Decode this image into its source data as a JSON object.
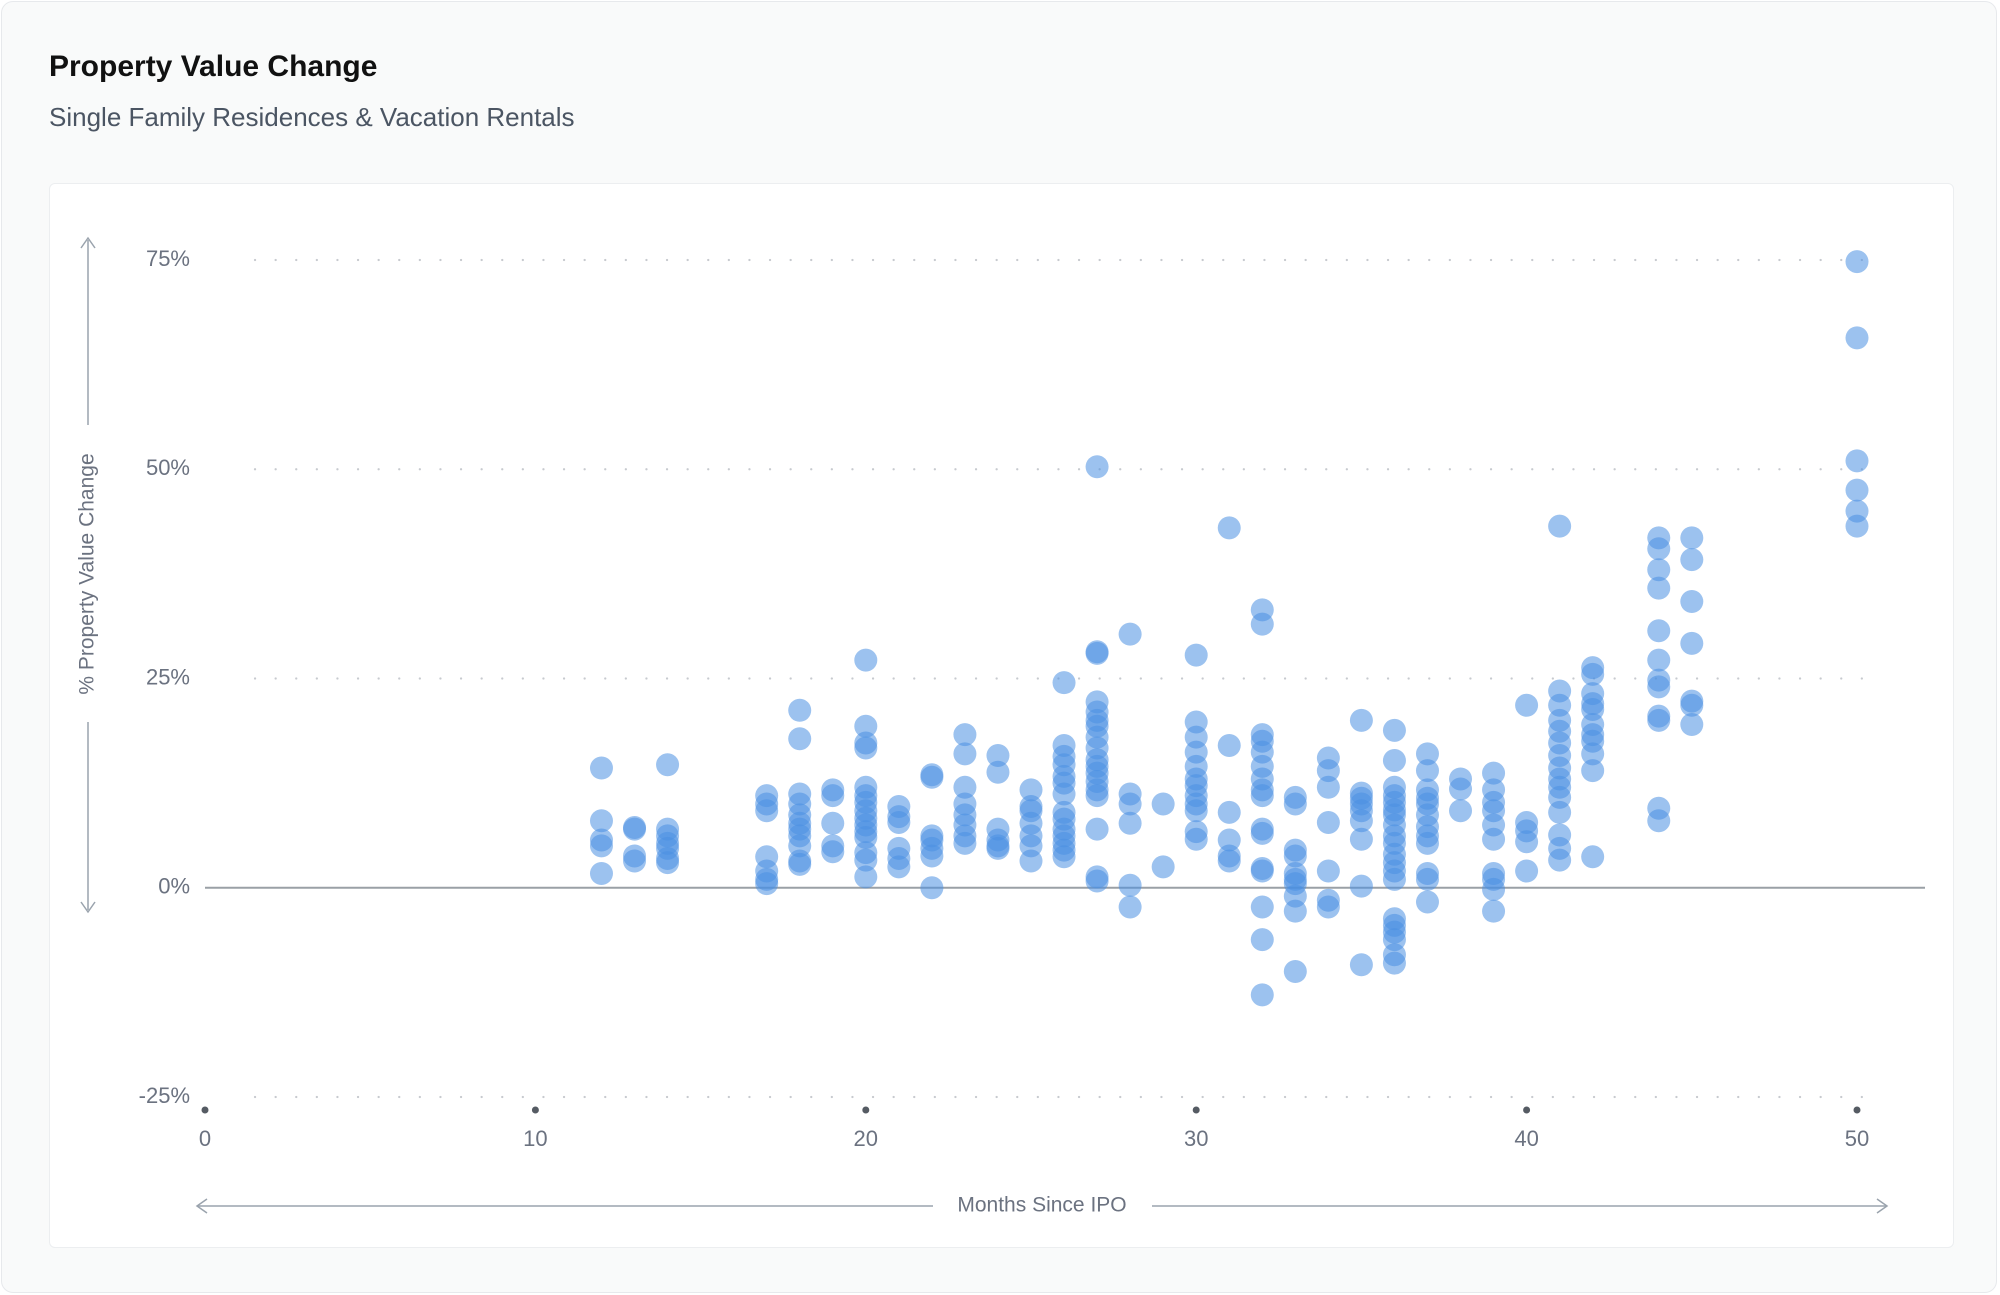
{
  "header": {
    "title": "Property Value Change",
    "subtitle": "Single Family Residences & Vacation Rentals"
  },
  "colors": {
    "point": "#4a90e2",
    "zero_line": "#9aa0a6",
    "grid_dots": "#c7cacf",
    "axis_arrow": "#9aa3ad"
  },
  "chart_data": {
    "type": "scatter",
    "xlabel": "Months Since IPO",
    "ylabel": "% Property Value Change",
    "xlim": [
      0,
      50
    ],
    "ylim": [
      -25,
      75
    ],
    "x_ticks": [
      0,
      10,
      20,
      30,
      40,
      50
    ],
    "y_ticks": [
      -25,
      0,
      25,
      50,
      75
    ],
    "x_tick_labels": [
      "0",
      "10",
      "20",
      "30",
      "40",
      "50"
    ],
    "y_tick_labels": [
      "-25%",
      "0%",
      "25%",
      "50%",
      "75%"
    ],
    "grid": "horizontal-dotted",
    "zero_line": true,
    "series": [
      {
        "points": [
          [
            12,
            14.3
          ],
          [
            12,
            8.0
          ],
          [
            12,
            5.7
          ],
          [
            12,
            5.0
          ],
          [
            12,
            1.7
          ],
          [
            13,
            7.2
          ],
          [
            13,
            7.0
          ],
          [
            13,
            3.8
          ],
          [
            13,
            3.2
          ],
          [
            14,
            14.7
          ],
          [
            14,
            7.0
          ],
          [
            14,
            6.2
          ],
          [
            14,
            5.3
          ],
          [
            14,
            4.7
          ],
          [
            14,
            3.5
          ],
          [
            14,
            3.0
          ],
          [
            17,
            11.0
          ],
          [
            17,
            10.0
          ],
          [
            17,
            9.2
          ],
          [
            17,
            3.7
          ],
          [
            17,
            2.0
          ],
          [
            17,
            1.0
          ],
          [
            17,
            0.5
          ],
          [
            18,
            21.2
          ],
          [
            18,
            17.8
          ],
          [
            18,
            11.2
          ],
          [
            18,
            10.0
          ],
          [
            18,
            8.7
          ],
          [
            18,
            7.7
          ],
          [
            18,
            7.0
          ],
          [
            18,
            6.2
          ],
          [
            18,
            5.0
          ],
          [
            18,
            3.2
          ],
          [
            18,
            2.8
          ],
          [
            19,
            11.7
          ],
          [
            19,
            11.0
          ],
          [
            19,
            7.7
          ],
          [
            19,
            5.0
          ],
          [
            19,
            4.3
          ],
          [
            20,
            27.2
          ],
          [
            20,
            19.3
          ],
          [
            20,
            17.3
          ],
          [
            20,
            16.7
          ],
          [
            20,
            12.0
          ],
          [
            20,
            11.0
          ],
          [
            20,
            10.2
          ],
          [
            20,
            9.2
          ],
          [
            20,
            8.3
          ],
          [
            20,
            7.5
          ],
          [
            20,
            6.7
          ],
          [
            20,
            6.0
          ],
          [
            20,
            4.2
          ],
          [
            20,
            3.3
          ],
          [
            20,
            1.3
          ],
          [
            21,
            9.7
          ],
          [
            21,
            8.5
          ],
          [
            21,
            7.8
          ],
          [
            21,
            4.7
          ],
          [
            21,
            3.5
          ],
          [
            21,
            2.5
          ],
          [
            22,
            13.5
          ],
          [
            22,
            13.2
          ],
          [
            22,
            6.2
          ],
          [
            22,
            5.7
          ],
          [
            22,
            4.7
          ],
          [
            22,
            3.8
          ],
          [
            22,
            0.0
          ],
          [
            23,
            18.3
          ],
          [
            23,
            16.0
          ],
          [
            23,
            12.0
          ],
          [
            23,
            10.0
          ],
          [
            23,
            8.7
          ],
          [
            23,
            7.5
          ],
          [
            23,
            6.2
          ],
          [
            23,
            5.3
          ],
          [
            24,
            15.8
          ],
          [
            24,
            13.8
          ],
          [
            24,
            7.0
          ],
          [
            24,
            5.7
          ],
          [
            24,
            5.0
          ],
          [
            24,
            4.7
          ],
          [
            25,
            11.7
          ],
          [
            25,
            9.7
          ],
          [
            25,
            9.2
          ],
          [
            25,
            7.7
          ],
          [
            25,
            6.2
          ],
          [
            25,
            5.0
          ],
          [
            25,
            3.2
          ],
          [
            26,
            24.5
          ],
          [
            26,
            17.0
          ],
          [
            26,
            15.7
          ],
          [
            26,
            14.7
          ],
          [
            26,
            13.3
          ],
          [
            26,
            12.5
          ],
          [
            26,
            11.2
          ],
          [
            26,
            9.0
          ],
          [
            26,
            8.2
          ],
          [
            26,
            7.0
          ],
          [
            26,
            6.2
          ],
          [
            26,
            5.3
          ],
          [
            26,
            4.5
          ],
          [
            26,
            3.7
          ],
          [
            27,
            50.3
          ],
          [
            27,
            28.2
          ],
          [
            27,
            28.0
          ],
          [
            27,
            22.2
          ],
          [
            27,
            21.0
          ],
          [
            27,
            20.0
          ],
          [
            27,
            19.3
          ],
          [
            27,
            18.0
          ],
          [
            27,
            16.7
          ],
          [
            27,
            15.3
          ],
          [
            27,
            14.5
          ],
          [
            27,
            13.7
          ],
          [
            27,
            12.7
          ],
          [
            27,
            11.7
          ],
          [
            27,
            11.0
          ],
          [
            27,
            7.0
          ],
          [
            27,
            1.3
          ],
          [
            27,
            0.8
          ],
          [
            28,
            30.3
          ],
          [
            28,
            11.2
          ],
          [
            28,
            10.0
          ],
          [
            28,
            7.7
          ],
          [
            28,
            0.3
          ],
          [
            28,
            -2.3
          ],
          [
            29,
            10.0
          ],
          [
            29,
            2.5
          ],
          [
            30,
            27.8
          ],
          [
            30,
            19.8
          ],
          [
            30,
            18.0
          ],
          [
            30,
            16.2
          ],
          [
            30,
            14.5
          ],
          [
            30,
            13.0
          ],
          [
            30,
            12.2
          ],
          [
            30,
            11.0
          ],
          [
            30,
            10.0
          ],
          [
            30,
            9.2
          ],
          [
            30,
            6.7
          ],
          [
            30,
            5.8
          ],
          [
            31,
            43.0
          ],
          [
            31,
            17.0
          ],
          [
            31,
            9.0
          ],
          [
            31,
            5.7
          ],
          [
            31,
            3.8
          ],
          [
            31,
            3.2
          ],
          [
            32,
            33.2
          ],
          [
            32,
            31.5
          ],
          [
            32,
            18.3
          ],
          [
            32,
            17.5
          ],
          [
            32,
            16.2
          ],
          [
            32,
            14.5
          ],
          [
            32,
            13.0
          ],
          [
            32,
            11.7
          ],
          [
            32,
            11.0
          ],
          [
            32,
            7.0
          ],
          [
            32,
            6.5
          ],
          [
            32,
            2.3
          ],
          [
            32,
            2.0
          ],
          [
            32,
            -2.3
          ],
          [
            32,
            -6.2
          ],
          [
            32,
            -12.8
          ],
          [
            33,
            10.8
          ],
          [
            33,
            10.0
          ],
          [
            33,
            4.5
          ],
          [
            33,
            3.8
          ],
          [
            33,
            1.7
          ],
          [
            33,
            1.0
          ],
          [
            33,
            0.5
          ],
          [
            33,
            -1.0
          ],
          [
            33,
            -2.8
          ],
          [
            33,
            -10.0
          ],
          [
            34,
            15.5
          ],
          [
            34,
            14.0
          ],
          [
            34,
            12.0
          ],
          [
            34,
            7.8
          ],
          [
            34,
            2.0
          ],
          [
            34,
            -1.5
          ],
          [
            34,
            -2.3
          ],
          [
            35,
            20.0
          ],
          [
            35,
            11.3
          ],
          [
            35,
            10.7
          ],
          [
            35,
            10.0
          ],
          [
            35,
            9.2
          ],
          [
            35,
            8.0
          ],
          [
            35,
            5.8
          ],
          [
            35,
            0.2
          ],
          [
            35,
            -9.2
          ],
          [
            36,
            18.8
          ],
          [
            36,
            15.2
          ],
          [
            36,
            12.0
          ],
          [
            36,
            11.0
          ],
          [
            36,
            10.2
          ],
          [
            36,
            9.3
          ],
          [
            36,
            8.7
          ],
          [
            36,
            7.5
          ],
          [
            36,
            6.2
          ],
          [
            36,
            5.3
          ],
          [
            36,
            4.0
          ],
          [
            36,
            3.0
          ],
          [
            36,
            2.0
          ],
          [
            36,
            1.0
          ],
          [
            36,
            -3.7
          ],
          [
            36,
            -4.5
          ],
          [
            36,
            -5.3
          ],
          [
            36,
            -6.2
          ],
          [
            36,
            -8.0
          ],
          [
            36,
            -9.0
          ],
          [
            37,
            16.0
          ],
          [
            37,
            14.0
          ],
          [
            37,
            11.7
          ],
          [
            37,
            10.7
          ],
          [
            37,
            10.0
          ],
          [
            37,
            8.7
          ],
          [
            37,
            7.3
          ],
          [
            37,
            6.2
          ],
          [
            37,
            5.3
          ],
          [
            37,
            1.7
          ],
          [
            37,
            1.0
          ],
          [
            37,
            -1.7
          ],
          [
            38,
            13.0
          ],
          [
            38,
            11.8
          ],
          [
            38,
            9.2
          ],
          [
            39,
            13.7
          ],
          [
            39,
            11.7
          ],
          [
            39,
            10.2
          ],
          [
            39,
            9.2
          ],
          [
            39,
            7.5
          ],
          [
            39,
            5.8
          ],
          [
            39,
            1.7
          ],
          [
            39,
            1.0
          ],
          [
            39,
            -0.2
          ],
          [
            39,
            -2.8
          ],
          [
            40,
            21.8
          ],
          [
            40,
            7.8
          ],
          [
            40,
            6.8
          ],
          [
            40,
            5.5
          ],
          [
            40,
            2.0
          ],
          [
            41,
            43.2
          ],
          [
            41,
            23.5
          ],
          [
            41,
            21.8
          ],
          [
            41,
            20.0
          ],
          [
            41,
            18.7
          ],
          [
            41,
            17.3
          ],
          [
            41,
            15.8
          ],
          [
            41,
            14.3
          ],
          [
            41,
            13.0
          ],
          [
            41,
            12.0
          ],
          [
            41,
            10.8
          ],
          [
            41,
            9.0
          ],
          [
            41,
            6.3
          ],
          [
            41,
            4.7
          ],
          [
            41,
            3.3
          ],
          [
            42,
            26.3
          ],
          [
            42,
            25.5
          ],
          [
            42,
            23.2
          ],
          [
            42,
            22.0
          ],
          [
            42,
            21.3
          ],
          [
            42,
            19.5
          ],
          [
            42,
            18.3
          ],
          [
            42,
            17.5
          ],
          [
            42,
            16.0
          ],
          [
            42,
            14.0
          ],
          [
            42,
            3.7
          ],
          [
            44,
            41.8
          ],
          [
            44,
            40.5
          ],
          [
            44,
            38.0
          ],
          [
            44,
            35.8
          ],
          [
            44,
            30.7
          ],
          [
            44,
            27.2
          ],
          [
            44,
            24.8
          ],
          [
            44,
            24.0
          ],
          [
            44,
            20.5
          ],
          [
            44,
            20.0
          ],
          [
            44,
            9.5
          ],
          [
            44,
            8.0
          ],
          [
            45,
            41.8
          ],
          [
            45,
            39.2
          ],
          [
            45,
            34.2
          ],
          [
            45,
            29.2
          ],
          [
            45,
            22.3
          ],
          [
            45,
            21.8
          ],
          [
            45,
            19.5
          ],
          [
            50,
            74.8
          ],
          [
            50,
            65.7
          ],
          [
            50,
            51.0
          ],
          [
            50,
            47.5
          ],
          [
            50,
            45.0
          ],
          [
            50,
            43.2
          ]
        ]
      }
    ]
  }
}
